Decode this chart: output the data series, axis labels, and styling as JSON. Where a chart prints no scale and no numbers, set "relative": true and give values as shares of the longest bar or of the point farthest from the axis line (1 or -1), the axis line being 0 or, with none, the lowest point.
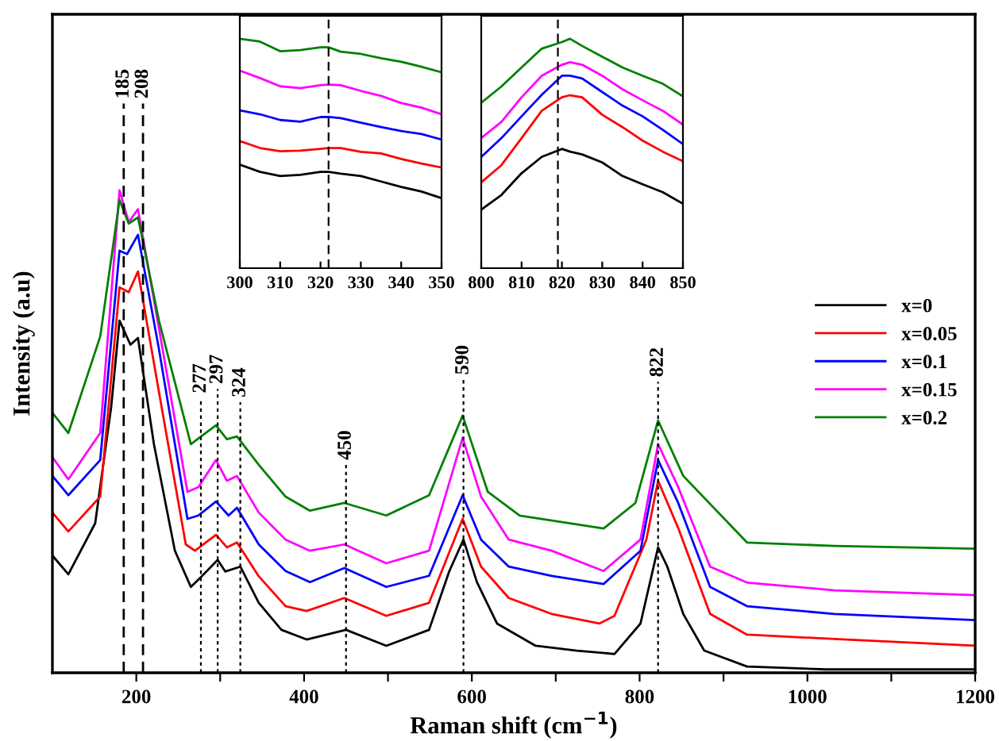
{
  "chart_data": [
    {
      "type": "line",
      "relative": true,
      "xlabel": "Raman shift (cm$^{−1}$)",
      "ylabel": "Intensity (a.u)",
      "xlim": [
        100,
        1200
      ],
      "xticks": [
        200,
        {
          "value": 300,
          "label": null
        },
        400,
        {
          "value": 500,
          "label": null
        },
        600,
        {
          "value": 700,
          "label": null
        },
        800,
        {
          "value": 900,
          "label": null
        },
        1000,
        {
          "value": 1100,
          "label": null
        },
        1200
      ],
      "legend": "right",
      "grid": false,
      "line_style": "solid",
      "marker": "none",
      "ref_lines": [
        {
          "axis": "x",
          "value": 185,
          "label": "185",
          "line_style": "dashed"
        },
        {
          "axis": "x",
          "value": 208,
          "label": "208",
          "line_style": "dashed"
        },
        {
          "axis": "x",
          "value": 277,
          "label": "277",
          "line_style": "dotted"
        },
        {
          "axis": "x",
          "value": 297,
          "label": "297",
          "line_style": "dotted"
        },
        {
          "axis": "x",
          "value": 324,
          "label": "324",
          "line_style": "dotted"
        },
        {
          "axis": "x",
          "value": 450,
          "label": "450",
          "line_style": "dotted"
        },
        {
          "axis": "x",
          "value": 590,
          "label": "590",
          "line_style": "dotted"
        },
        {
          "axis": "x",
          "value": 822,
          "label": "822",
          "line_style": "dotted"
        }
      ],
      "series": [
        {
          "name": "x=0",
          "color": "#000000",
          "x": [
            100,
            119,
            151,
            170,
            180,
            193,
            202,
            221,
            246,
            265,
            278,
            297,
            306,
            324,
            346,
            373,
            403,
            450,
            498,
            549,
            573,
            590,
            606,
            630,
            676,
            725,
            770,
            801,
            822,
            833,
            852,
            877,
            928,
            1022,
            1200
          ],
          "values": [
            0.243,
            0.204,
            0.31,
            0.55,
            0.73,
            0.68,
            0.694,
            0.474,
            0.253,
            0.178,
            0.2,
            0.234,
            0.21,
            0.22,
            0.145,
            0.089,
            0.069,
            0.089,
            0.056,
            0.089,
            0.21,
            0.276,
            0.188,
            0.102,
            0.056,
            0.046,
            0.039,
            0.102,
            0.26,
            0.22,
            0.122,
            0.046,
            0.013,
            0.007,
            0.007
          ]
        },
        {
          "name": "x=0.05",
          "color": "#ff0000",
          "x": [
            100,
            119,
            157,
            180,
            191,
            202,
            227,
            259,
            270,
            295,
            308,
            320,
            346,
            378,
            403,
            448,
            498,
            549,
            589,
            611,
            644,
            695,
            752,
            770,
            808,
            822,
            846,
            884,
            928,
            1032,
            1200
          ],
          "values": [
            0.332,
            0.293,
            0.365,
            0.799,
            0.789,
            0.832,
            0.582,
            0.266,
            0.253,
            0.286,
            0.26,
            0.27,
            0.2,
            0.138,
            0.128,
            0.155,
            0.118,
            0.145,
            0.319,
            0.22,
            0.155,
            0.122,
            0.102,
            0.118,
            0.276,
            0.398,
            0.3,
            0.122,
            0.079,
            0.07,
            0.056
          ]
        },
        {
          "name": "x=0.1",
          "color": "#0000ff",
          "x": [
            100,
            119,
            157,
            180,
            189,
            202,
            227,
            261,
            274,
            295,
            310,
            320,
            346,
            378,
            407,
            448,
            498,
            549,
            589,
            611,
            644,
            695,
            757,
            801,
            822,
            846,
            884,
            928,
            1032,
            1200
          ],
          "values": [
            0.408,
            0.368,
            0.441,
            0.875,
            0.868,
            0.908,
            0.671,
            0.319,
            0.326,
            0.355,
            0.326,
            0.342,
            0.266,
            0.211,
            0.188,
            0.217,
            0.178,
            0.201,
            0.368,
            0.276,
            0.22,
            0.201,
            0.184,
            0.253,
            0.441,
            0.352,
            0.178,
            0.138,
            0.122,
            0.109
          ]
        },
        {
          "name": "x=0.15",
          "color": "#ff00ff",
          "x": [
            100,
            119,
            157,
            180,
            191,
            202,
            227,
            261,
            274,
            295,
            308,
            320,
            346,
            378,
            407,
            448,
            498,
            549,
            589,
            611,
            644,
            695,
            757,
            801,
            822,
            846,
            884,
            928,
            1032,
            1200
          ],
          "values": [
            0.447,
            0.401,
            0.497,
            1.0,
            0.934,
            0.961,
            0.714,
            0.375,
            0.385,
            0.441,
            0.398,
            0.408,
            0.332,
            0.276,
            0.253,
            0.266,
            0.227,
            0.253,
            0.487,
            0.365,
            0.276,
            0.253,
            0.211,
            0.276,
            0.474,
            0.385,
            0.22,
            0.187,
            0.171,
            0.161
          ]
        },
        {
          "name": "x=0.2",
          "color": "#008000",
          "x": [
            100,
            119,
            157,
            180,
            191,
            202,
            227,
            265,
            295,
            308,
            320,
            346,
            378,
            407,
            448,
            498,
            549,
            589,
            619,
            657,
            757,
            795,
            822,
            852,
            928,
            1032,
            1200
          ],
          "values": [
            0.539,
            0.497,
            0.697,
            0.98,
            0.931,
            0.944,
            0.73,
            0.474,
            0.513,
            0.484,
            0.49,
            0.431,
            0.365,
            0.336,
            0.352,
            0.326,
            0.368,
            0.533,
            0.375,
            0.326,
            0.299,
            0.352,
            0.523,
            0.408,
            0.27,
            0.263,
            0.257
          ]
        }
      ]
    },
    {
      "type": "line",
      "relative": true,
      "xlim": [
        300,
        350
      ],
      "xticks": [
        300,
        310,
        320,
        330,
        340,
        350
      ],
      "tick_labels": "x",
      "grid": false,
      "line_style": "solid",
      "marker": "none",
      "ref_lines": [
        {
          "axis": "x",
          "value": 322,
          "line_style": "dashed"
        }
      ],
      "x": [
        300,
        305,
        310,
        315,
        320,
        322,
        325,
        330,
        335,
        340,
        345,
        350
      ],
      "series": [
        {
          "color": "#000000",
          "values": [
            0.451,
            0.42,
            0.402,
            0.407,
            0.42,
            0.42,
            0.412,
            0.402,
            0.378,
            0.354,
            0.334,
            0.305
          ]
        },
        {
          "color": "#ff0000",
          "values": [
            0.554,
            0.524,
            0.51,
            0.512,
            0.52,
            0.524,
            0.524,
            0.507,
            0.5,
            0.476,
            0.456,
            0.439
          ]
        },
        {
          "color": "#0000ff",
          "values": [
            0.688,
            0.671,
            0.646,
            0.639,
            0.659,
            0.659,
            0.654,
            0.634,
            0.615,
            0.598,
            0.585,
            0.561
          ]
        },
        {
          "color": "#ff00ff",
          "values": [
            0.861,
            0.829,
            0.793,
            0.785,
            0.798,
            0.8,
            0.798,
            0.773,
            0.751,
            0.72,
            0.7,
            0.671
          ]
        },
        {
          "color": "#008000",
          "values": [
            1.0,
            0.988,
            0.946,
            0.951,
            0.963,
            0.963,
            0.944,
            0.934,
            0.915,
            0.9,
            0.878,
            0.854
          ]
        }
      ]
    },
    {
      "type": "line",
      "relative": true,
      "xlim": [
        800,
        850
      ],
      "xticks": [
        800,
        810,
        820,
        830,
        840,
        850
      ],
      "tick_labels": "x",
      "grid": false,
      "line_style": "solid",
      "marker": "none",
      "ref_lines": [
        {
          "axis": "x",
          "value": 819,
          "line_style": "dashed"
        }
      ],
      "x": [
        800,
        805,
        810,
        815,
        820,
        822,
        825,
        830,
        835,
        840,
        845,
        850
      ],
      "series": [
        {
          "color": "#000000",
          "values": [
            0.255,
            0.319,
            0.414,
            0.485,
            0.52,
            0.508,
            0.496,
            0.461,
            0.402,
            0.366,
            0.331,
            0.281
          ]
        },
        {
          "color": "#ff0000",
          "values": [
            0.374,
            0.449,
            0.567,
            0.686,
            0.745,
            0.754,
            0.745,
            0.669,
            0.615,
            0.556,
            0.508,
            0.466
          ]
        },
        {
          "color": "#0000ff",
          "values": [
            0.485,
            0.567,
            0.662,
            0.756,
            0.839,
            0.839,
            0.827,
            0.768,
            0.709,
            0.662,
            0.603,
            0.541
          ]
        },
        {
          "color": "#ff00ff",
          "values": [
            0.567,
            0.638,
            0.745,
            0.839,
            0.887,
            0.898,
            0.887,
            0.839,
            0.78,
            0.732,
            0.686,
            0.626
          ]
        },
        {
          "color": "#008000",
          "values": [
            0.721,
            0.792,
            0.875,
            0.957,
            0.986,
            1.0,
            0.969,
            0.922,
            0.875,
            0.839,
            0.804,
            0.749
          ]
        }
      ]
    }
  ]
}
